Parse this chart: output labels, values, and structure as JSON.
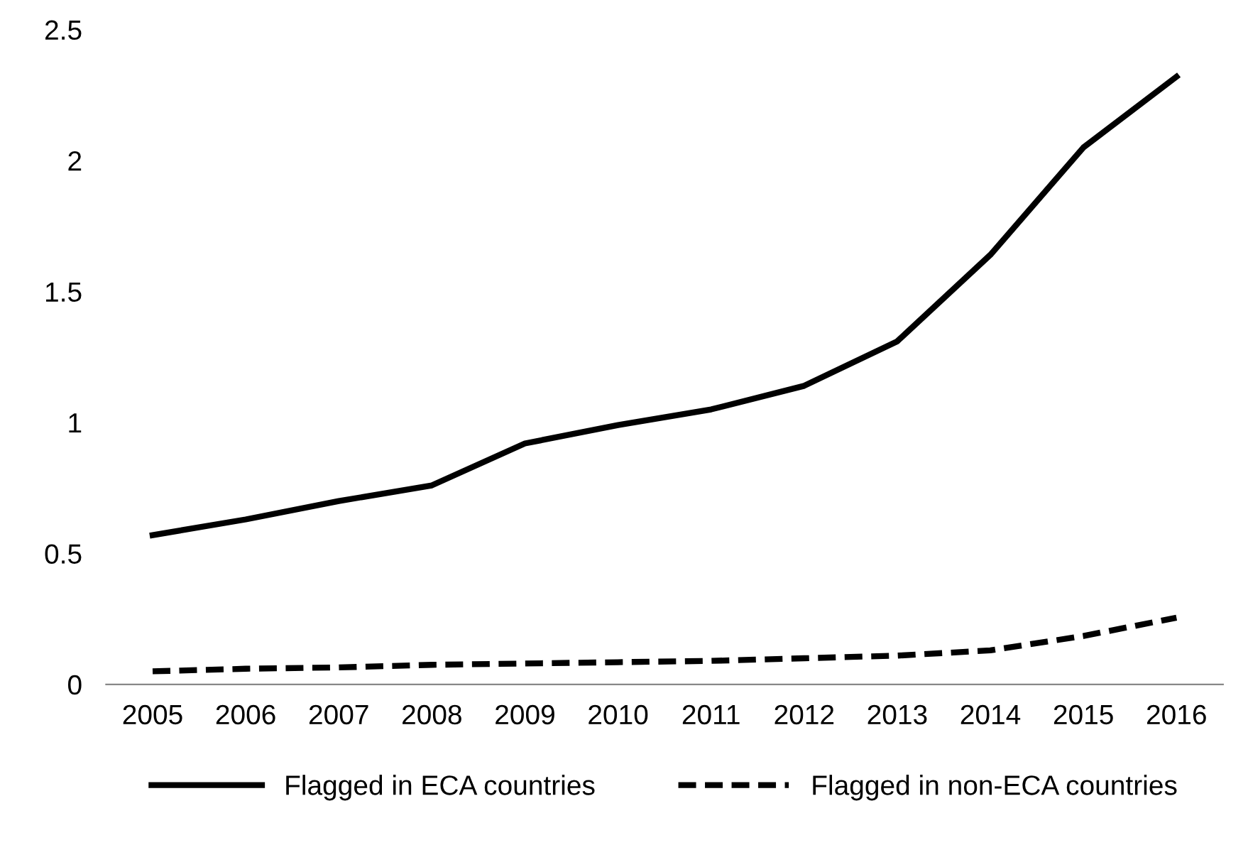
{
  "chart_data": {
    "type": "line",
    "categories": [
      "2005",
      "2006",
      "2007",
      "2008",
      "2009",
      "2010",
      "2011",
      "2012",
      "2013",
      "2014",
      "2015",
      "2016"
    ],
    "series": [
      {
        "name": "Flagged in ECA countries",
        "color": "#000000",
        "line_style": "solid",
        "values": [
          0.57,
          0.63,
          0.7,
          0.76,
          0.92,
          0.99,
          1.05,
          1.14,
          1.31,
          1.64,
          2.05,
          2.32
        ]
      },
      {
        "name": "Flagged in non-ECA countries",
        "color": "#000000",
        "line_style": "dashed",
        "values": [
          0.05,
          0.06,
          0.065,
          0.075,
          0.08,
          0.085,
          0.09,
          0.1,
          0.11,
          0.13,
          0.185,
          0.255
        ]
      }
    ],
    "ylim": [
      0,
      2.5
    ],
    "yticks": [
      0,
      0.5,
      1,
      1.5,
      2,
      2.5
    ],
    "grid": false,
    "legend": "bottom",
    "marker": "none"
  }
}
